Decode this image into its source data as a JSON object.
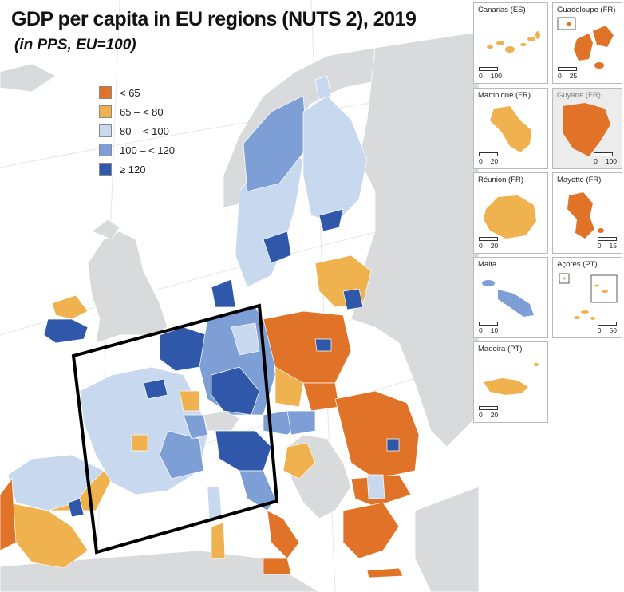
{
  "title": "GDP per capita in EU regions (NUTS 2), 2019",
  "subtitle": "(in PPS, EU=100)",
  "colors": {
    "lt65": "#e07328",
    "65to80": "#f0b14f",
    "80to100": "#c8d8ef",
    "100to120": "#7e9fd6",
    "ge120": "#2f58aa",
    "sea": "#ffffff",
    "land_nodata": "#d9dadb",
    "nonEU": "#d9dadb"
  },
  "legend": {
    "items": [
      {
        "label": "< 65",
        "color_key": "lt65"
      },
      {
        "label": "65 – < 80",
        "color_key": "65to80"
      },
      {
        "label": "80 – < 100",
        "color_key": "80to100"
      },
      {
        "label": "100 – < 120",
        "color_key": "100to120"
      },
      {
        "label": "≥ 120",
        "color_key": "ge120"
      }
    ]
  },
  "insets": [
    {
      "name": "Canarias (ES)",
      "scale_labels": [
        "0",
        "100"
      ],
      "color_key": "65to80"
    },
    {
      "name": "Guadeloupe (FR)",
      "scale_labels": [
        "0",
        "25"
      ],
      "color_key": "lt65"
    },
    {
      "name": "Martinique (FR)",
      "scale_labels": [
        "0",
        "20"
      ],
      "color_key": "65to80"
    },
    {
      "name": "Guyane (FR)",
      "scale_labels": [
        "0",
        "100"
      ],
      "color_key": "lt65"
    },
    {
      "name": "Réunion (FR)",
      "scale_labels": [
        "0",
        "20"
      ],
      "color_key": "65to80"
    },
    {
      "name": "Mayotte (FR)",
      "scale_labels": [
        "0",
        "15"
      ],
      "color_key": "lt65"
    },
    {
      "name": "Malta",
      "scale_labels": [
        "0",
        "10"
      ],
      "color_key": "100to120"
    },
    {
      "name": "Açores (PT)",
      "scale_labels": [
        "0",
        "50"
      ],
      "color_key": "65to80"
    },
    {
      "name": "Madeira (PT)",
      "scale_labels": [
        "0",
        "20"
      ],
      "color_key": "65to80"
    }
  ]
}
